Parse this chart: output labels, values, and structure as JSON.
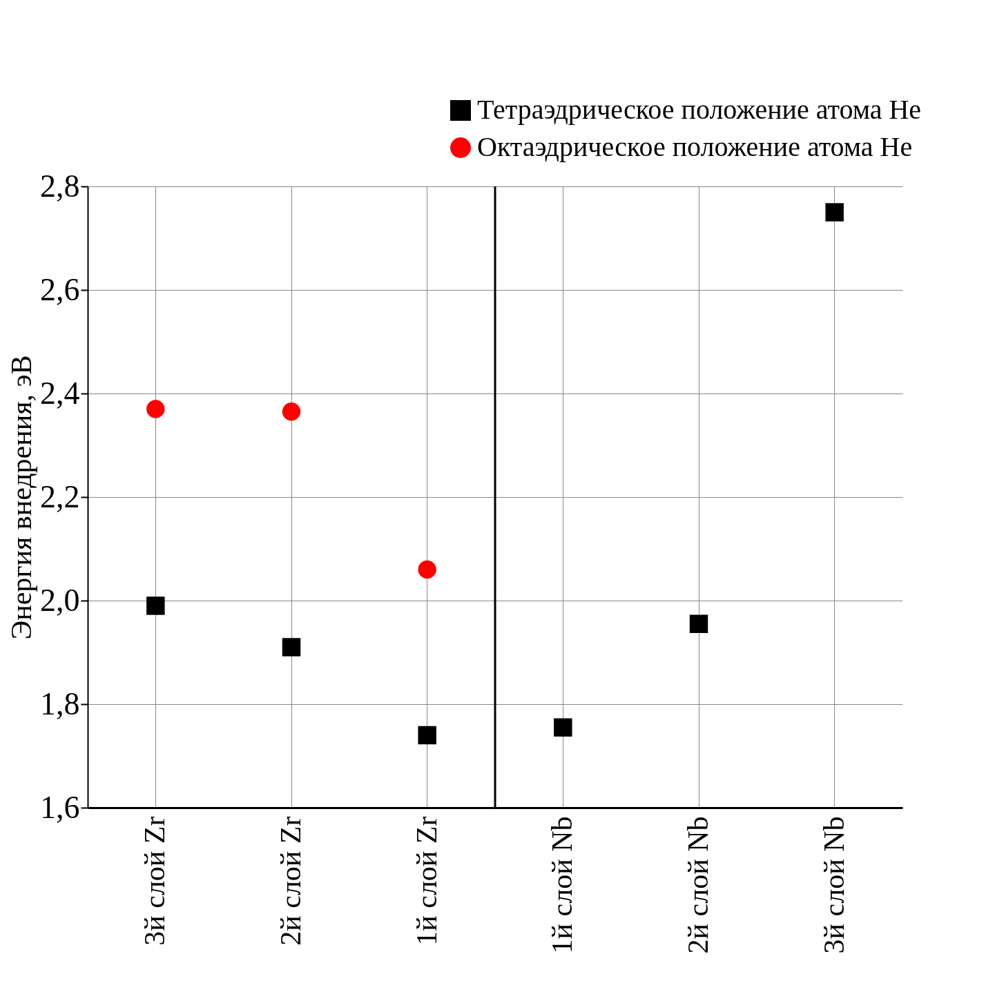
{
  "chart_data": {
    "type": "scatter",
    "ylabel": "Энергия внедрения, эВ",
    "categories": [
      "3й слой Zr",
      "2й слой Zr",
      "1й слой Zr",
      "1й слой Nb",
      "2й слой Nb",
      "3й слой Nb"
    ],
    "series": [
      {
        "name": "Тетраэдрическое положение атома He",
        "color": "#000000",
        "marker": "square",
        "values": [
          1.99,
          1.91,
          1.74,
          1.755,
          1.955,
          2.75
        ]
      },
      {
        "name": "Октаэдрическое положение атома He",
        "color": "#ff0000",
        "marker": "circle",
        "values": [
          2.37,
          2.365,
          2.06,
          null,
          null,
          null
        ]
      }
    ],
    "ylim": [
      1.6,
      2.8
    ],
    "yticks": [
      {
        "value": 1.6,
        "label": "1,6"
      },
      {
        "value": 1.8,
        "label": "1,8"
      },
      {
        "value": 2.0,
        "label": "2,0"
      },
      {
        "value": 2.2,
        "label": "2,2"
      },
      {
        "value": 2.4,
        "label": "2,4"
      },
      {
        "value": 2.6,
        "label": "2,6"
      },
      {
        "value": 2.8,
        "label": "2,8"
      }
    ],
    "ref_lines": [
      {
        "axis": "x",
        "value": "1й слой Nb",
        "color": "#000000",
        "line_style": "solid"
      }
    ],
    "grid": true,
    "legend": "top right"
  }
}
